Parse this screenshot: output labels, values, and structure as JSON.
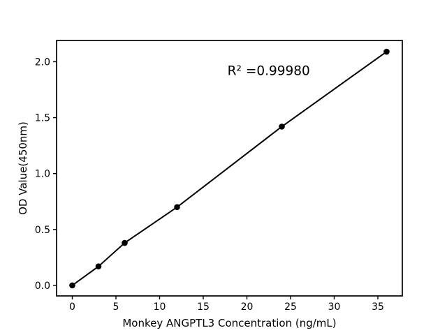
{
  "chart_data": {
    "type": "line",
    "title": "",
    "xlabel": "Monkey ANGPTL3 Concentration (ng/mL)",
    "ylabel": "OD Value(450nm)",
    "annotation": {
      "text": "R² =0.99980",
      "x": 22.5,
      "y": 1.92
    },
    "x": [
      0,
      3,
      6,
      12,
      24,
      36
    ],
    "y": [
      0.0,
      0.17,
      0.38,
      0.7,
      1.42,
      2.09
    ],
    "xlim": [
      -1.8,
      37.8
    ],
    "ylim": [
      -0.094,
      2.19
    ],
    "xticks": [
      0,
      5,
      10,
      15,
      20,
      25,
      30,
      35
    ],
    "xtick_labels": [
      "0",
      "5",
      "10",
      "15",
      "20",
      "25",
      "30",
      "35"
    ],
    "yticks": [
      0.0,
      0.5,
      1.0,
      1.5,
      2.0
    ],
    "ytick_labels": [
      "0.0",
      "0.5",
      "1.0",
      "1.5",
      "2.0"
    ],
    "grid": false,
    "legend_position": "none",
    "marker": "circle",
    "colors": {
      "line": "#000000",
      "marker": "#000000",
      "text": "#000000",
      "background": "#ffffff"
    }
  }
}
